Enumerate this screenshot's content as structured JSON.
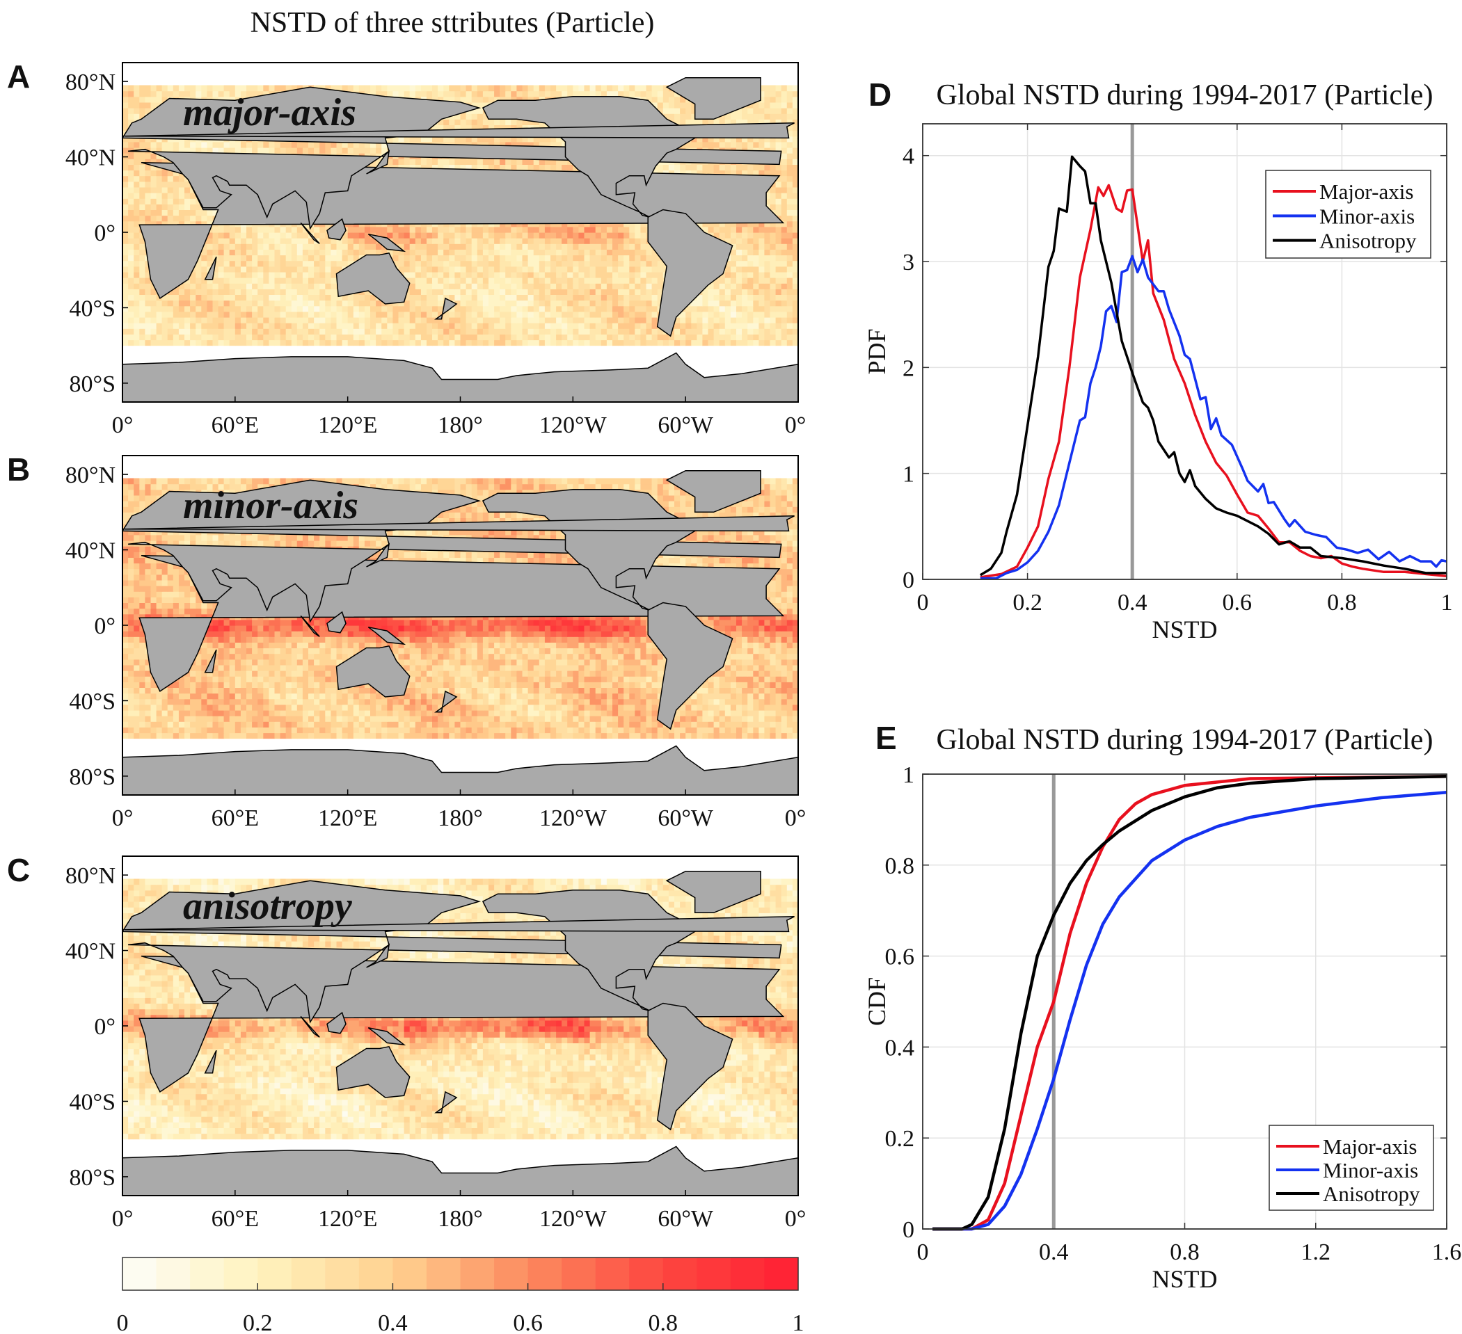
{
  "figure_title": "NSTD of three sttributes (Particle)",
  "maps": [
    {
      "panel": "A",
      "label": "major-axis"
    },
    {
      "panel": "B",
      "label": "minor-axis"
    },
    {
      "panel": "C",
      "label": "anisotropy"
    }
  ],
  "map_lat_ticks": [
    "80°N",
    "40°N",
    "0°",
    "40°S",
    "80°S"
  ],
  "map_lon_ticks": [
    "0°",
    "60°E",
    "120°E",
    "180°",
    "120°W",
    "60°W",
    "0°"
  ],
  "colorbar": {
    "ticks": [
      "0",
      "0.2",
      "0.4",
      "0.6",
      "0.8",
      "1"
    ],
    "range": [
      0,
      1
    ],
    "steps": 20
  },
  "colors": {
    "major": "#e8101e",
    "minor": "#1432f0",
    "aniso": "#000000",
    "ref": "#999999",
    "land": "#aaaaaa"
  },
  "chart_data": [
    {
      "panel": "D",
      "type": "line",
      "title": "Global NSTD during 1994-2017 (Particle)",
      "xlabel": "NSTD",
      "ylabel": "PDF",
      "xlim": [
        0,
        1
      ],
      "ylim": [
        0,
        4.3
      ],
      "xticks": [
        "0",
        "0.2",
        "0.4",
        "0.6",
        "0.8",
        "1"
      ],
      "yticks": [
        "0",
        "1",
        "2",
        "3",
        "4"
      ],
      "grid": true,
      "legend": "top-right",
      "reference_x": 0.4,
      "series": [
        {
          "name": "Major-axis",
          "color": "#e8101e",
          "x": [
            0.11,
            0.15,
            0.18,
            0.2,
            0.22,
            0.24,
            0.26,
            0.28,
            0.3,
            0.32,
            0.335,
            0.345,
            0.355,
            0.37,
            0.38,
            0.39,
            0.4,
            0.42,
            0.43,
            0.44,
            0.46,
            0.48,
            0.5,
            0.52,
            0.54,
            0.56,
            0.58,
            0.6,
            0.62,
            0.64,
            0.66,
            0.68,
            0.7,
            0.72,
            0.74,
            0.76,
            0.78,
            0.8,
            0.82,
            0.84,
            0.88,
            0.92,
            0.96,
            1.0
          ],
          "y": [
            0.02,
            0.05,
            0.12,
            0.3,
            0.5,
            0.95,
            1.3,
            2.0,
            2.85,
            3.3,
            3.7,
            3.62,
            3.72,
            3.5,
            3.47,
            3.67,
            3.68,
            3.0,
            3.2,
            2.7,
            2.45,
            2.08,
            1.85,
            1.55,
            1.3,
            1.1,
            0.98,
            0.8,
            0.63,
            0.6,
            0.48,
            0.35,
            0.35,
            0.27,
            0.22,
            0.2,
            0.22,
            0.15,
            0.12,
            0.1,
            0.07,
            0.07,
            0.05,
            0.03
          ]
        },
        {
          "name": "Minor-axis",
          "color": "#1432f0",
          "x": [
            0.11,
            0.14,
            0.16,
            0.18,
            0.2,
            0.22,
            0.24,
            0.26,
            0.28,
            0.3,
            0.31,
            0.32,
            0.33,
            0.34,
            0.35,
            0.36,
            0.37,
            0.38,
            0.39,
            0.4,
            0.41,
            0.42,
            0.43,
            0.45,
            0.46,
            0.47,
            0.49,
            0.5,
            0.51,
            0.53,
            0.54,
            0.55,
            0.56,
            0.57,
            0.59,
            0.61,
            0.62,
            0.64,
            0.65,
            0.66,
            0.67,
            0.69,
            0.7,
            0.71,
            0.73,
            0.75,
            0.77,
            0.79,
            0.81,
            0.83,
            0.85,
            0.87,
            0.89,
            0.91,
            0.93,
            0.95,
            0.97,
            0.98,
            0.99,
            1.0
          ],
          "y": [
            0.01,
            0.01,
            0.06,
            0.09,
            0.16,
            0.27,
            0.45,
            0.7,
            1.1,
            1.5,
            1.53,
            1.85,
            2.0,
            2.2,
            2.53,
            2.58,
            2.43,
            2.9,
            2.92,
            3.05,
            2.9,
            3.02,
            2.85,
            2.72,
            2.72,
            2.55,
            2.3,
            2.12,
            2.08,
            1.7,
            1.72,
            1.42,
            1.52,
            1.36,
            1.27,
            1.05,
            0.93,
            0.83,
            0.9,
            0.72,
            0.73,
            0.57,
            0.5,
            0.56,
            0.45,
            0.42,
            0.4,
            0.3,
            0.28,
            0.25,
            0.28,
            0.19,
            0.26,
            0.17,
            0.22,
            0.17,
            0.17,
            0.12,
            0.18,
            0.17
          ]
        },
        {
          "name": "Anisotropy",
          "color": "#000000",
          "x": [
            0.11,
            0.13,
            0.15,
            0.16,
            0.18,
            0.2,
            0.22,
            0.24,
            0.25,
            0.26,
            0.275,
            0.285,
            0.3,
            0.31,
            0.32,
            0.33,
            0.34,
            0.36,
            0.38,
            0.39,
            0.4,
            0.42,
            0.43,
            0.44,
            0.45,
            0.47,
            0.48,
            0.49,
            0.5,
            0.51,
            0.52,
            0.54,
            0.56,
            0.58,
            0.6,
            0.62,
            0.64,
            0.66,
            0.68,
            0.7,
            0.72,
            0.74,
            0.76,
            0.8,
            0.84,
            0.88,
            0.92,
            0.96,
            1.0
          ],
          "y": [
            0.04,
            0.1,
            0.25,
            0.45,
            0.8,
            1.45,
            2.1,
            2.95,
            3.1,
            3.5,
            3.47,
            3.99,
            3.9,
            3.85,
            3.55,
            3.55,
            3.2,
            2.8,
            2.25,
            2.1,
            1.95,
            1.67,
            1.62,
            1.5,
            1.3,
            1.15,
            1.2,
            1.0,
            0.92,
            1.03,
            0.88,
            0.76,
            0.67,
            0.63,
            0.6,
            0.55,
            0.5,
            0.43,
            0.33,
            0.36,
            0.3,
            0.3,
            0.22,
            0.2,
            0.17,
            0.13,
            0.1,
            0.06,
            0.06
          ]
        }
      ]
    },
    {
      "panel": "E",
      "type": "line",
      "title": "Global NSTD during 1994-2017 (Particle)",
      "xlabel": "NSTD",
      "ylabel": "CDF",
      "xlim": [
        0,
        1.6
      ],
      "ylim": [
        0,
        1
      ],
      "xticks": [
        "0",
        "0.4",
        "0.8",
        "1.2",
        "1.6"
      ],
      "yticks": [
        "0",
        "0.2",
        "0.4",
        "0.6",
        "0.8",
        "1"
      ],
      "grid": true,
      "legend": "bottom-right",
      "reference_x": 0.4,
      "series": [
        {
          "name": "Major-axis",
          "color": "#e8101e",
          "x": [
            0.03,
            0.15,
            0.2,
            0.25,
            0.3,
            0.35,
            0.4,
            0.45,
            0.5,
            0.55,
            0.6,
            0.65,
            0.7,
            0.8,
            1.0,
            1.6
          ],
          "y": [
            0,
            0,
            0.02,
            0.1,
            0.25,
            0.4,
            0.5,
            0.65,
            0.76,
            0.84,
            0.9,
            0.935,
            0.955,
            0.975,
            0.99,
            0.995
          ]
        },
        {
          "name": "Minor-axis",
          "color": "#1432f0",
          "x": [
            0.03,
            0.15,
            0.2,
            0.25,
            0.3,
            0.35,
            0.4,
            0.45,
            0.5,
            0.55,
            0.6,
            0.7,
            0.8,
            0.9,
            1.0,
            1.2,
            1.4,
            1.6
          ],
          "y": [
            0,
            0,
            0.01,
            0.05,
            0.12,
            0.22,
            0.33,
            0.46,
            0.58,
            0.67,
            0.73,
            0.81,
            0.855,
            0.885,
            0.905,
            0.93,
            0.948,
            0.96
          ]
        },
        {
          "name": "Anisotropy",
          "color": "#000000",
          "x": [
            0.03,
            0.12,
            0.15,
            0.2,
            0.25,
            0.3,
            0.35,
            0.4,
            0.45,
            0.5,
            0.55,
            0.6,
            0.7,
            0.8,
            0.9,
            1.0,
            1.2,
            1.6
          ],
          "y": [
            0,
            0,
            0.01,
            0.07,
            0.22,
            0.43,
            0.6,
            0.69,
            0.76,
            0.81,
            0.845,
            0.875,
            0.92,
            0.95,
            0.97,
            0.98,
            0.99,
            0.995
          ]
        }
      ]
    }
  ]
}
